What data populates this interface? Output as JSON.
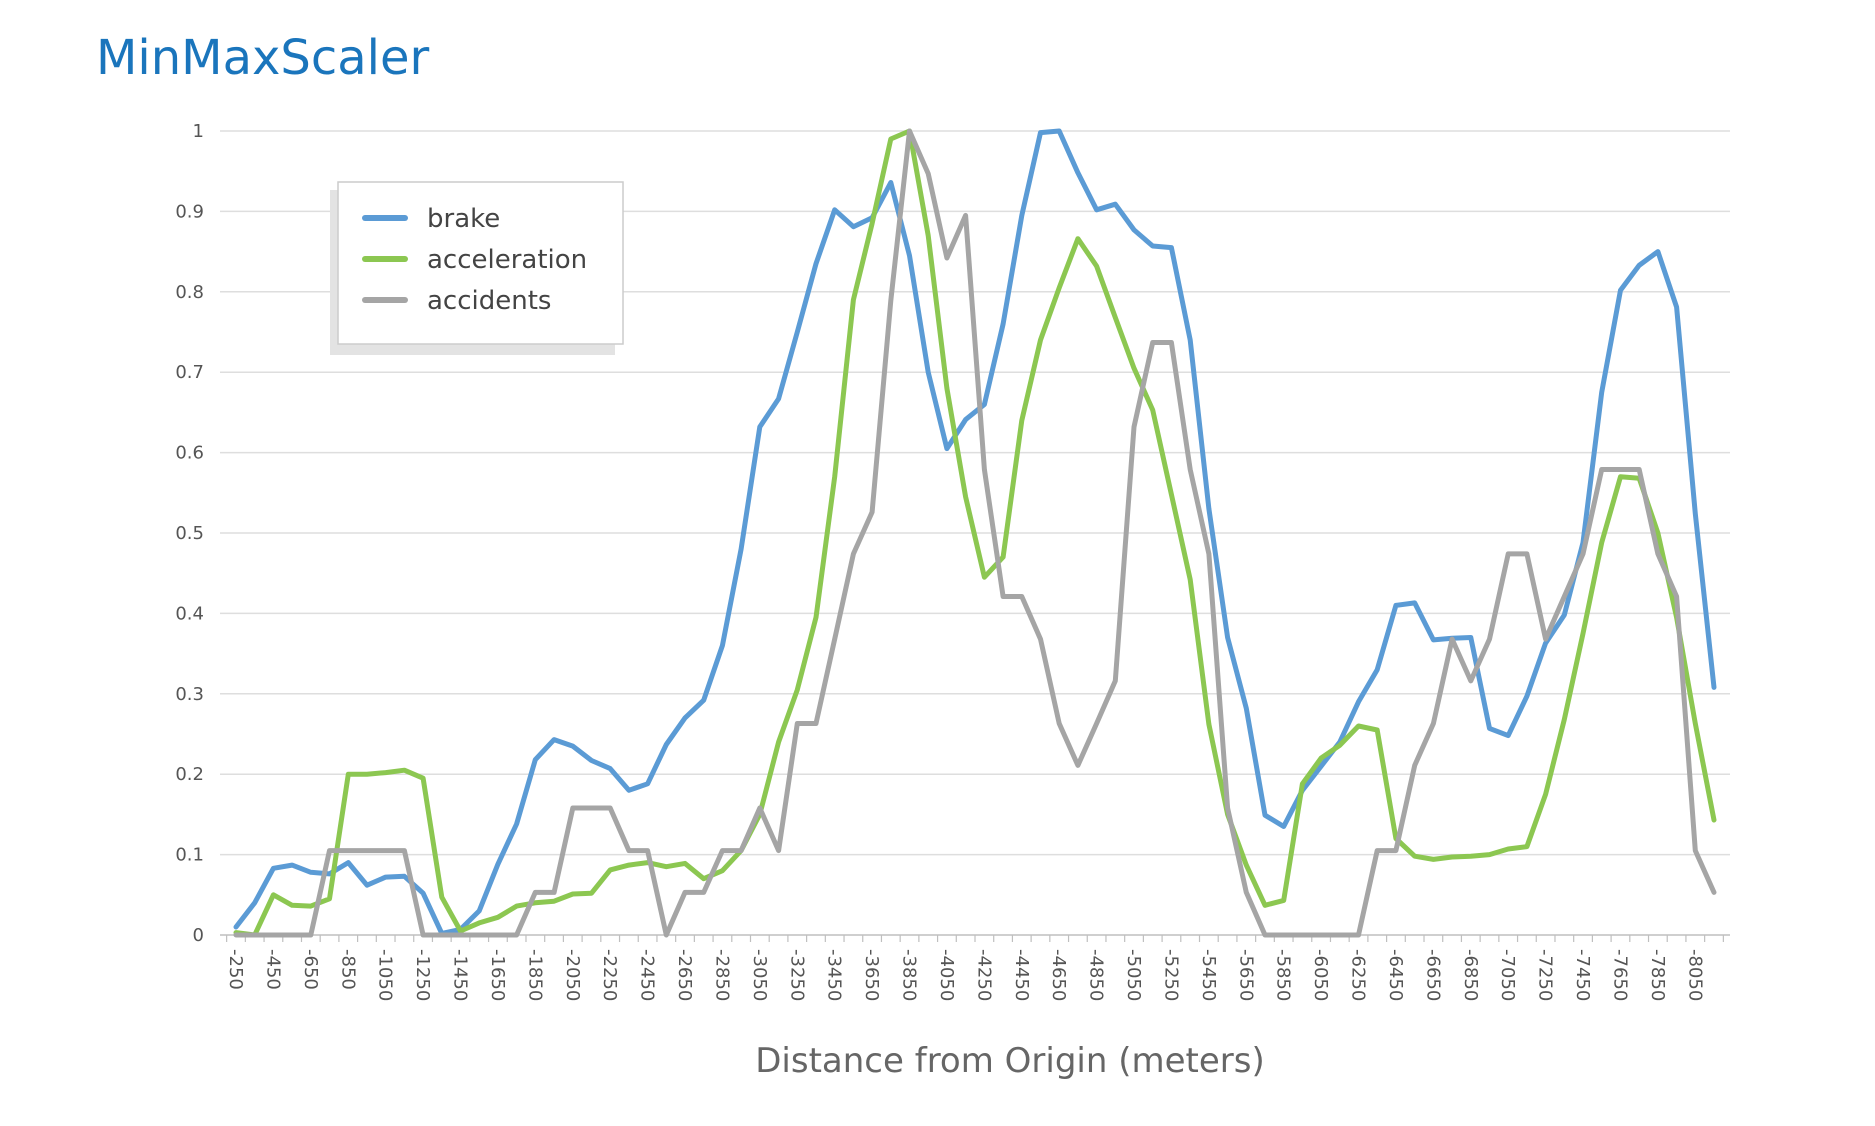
{
  "chart_data": {
    "type": "line",
    "title": "MinMaxScaler",
    "xlabel": "Distance from Origin (meters)",
    "ylabel": "",
    "ylim": [
      0,
      1
    ],
    "yticks": [
      0,
      0.1,
      0.2,
      0.3,
      0.4,
      0.5,
      0.6,
      0.7,
      0.8,
      0.9,
      1
    ],
    "ytick_labels": [
      "0",
      "0.1",
      "0.2",
      "0.3",
      "0.4",
      "0.5",
      "0.6",
      "0.7",
      "0.8",
      "0.9",
      "1"
    ],
    "x_tick_labels": [
      "-250",
      "-450",
      "-650",
      "-850",
      "-1050",
      "-1250",
      "-1450",
      "-1650",
      "-1850",
      "-2050",
      "-2250",
      "-2450",
      "-2650",
      "-2850",
      "-3050",
      "-3250",
      "-3450",
      "-3650",
      "-3850",
      "-4050",
      "-4250",
      "-4450",
      "-4650",
      "-4850",
      "-5050",
      "-5250",
      "-5450",
      "-5650",
      "-5850",
      "-6050",
      "-6250",
      "-6450",
      "-6650",
      "-6850",
      "-7050",
      "-7250",
      "-7450",
      "-7650",
      "-7850",
      "-8050"
    ],
    "x": [
      -250,
      -350,
      -450,
      -550,
      -650,
      -750,
      -850,
      -950,
      -1050,
      -1150,
      -1250,
      -1350,
      -1450,
      -1550,
      -1650,
      -1750,
      -1850,
      -1950,
      -2050,
      -2150,
      -2250,
      -2350,
      -2450,
      -2550,
      -2650,
      -2750,
      -2850,
      -2950,
      -3050,
      -3150,
      -3250,
      -3350,
      -3450,
      -3550,
      -3650,
      -3750,
      -3850,
      -3950,
      -4050,
      -4150,
      -4250,
      -4350,
      -4450,
      -4550,
      -4650,
      -4750,
      -4850,
      -4950,
      -5050,
      -5150,
      -5250,
      -5350,
      -5450,
      -5550,
      -5650,
      -5750,
      -5850,
      -5950,
      -6050,
      -6150,
      -6250,
      -6350,
      -6450,
      -6550,
      -6650,
      -6750,
      -6850,
      -6950,
      -7050,
      -7150,
      -7250,
      -7350,
      -7450,
      -7550,
      -7650,
      -7750,
      -7850,
      -7950,
      -8050,
      -8150
    ],
    "grid": true,
    "legend_position": "top-left",
    "series": [
      {
        "name": "brake",
        "color": "#5b9bd5",
        "values": [
          0.01,
          0.04,
          0.083,
          0.087,
          0.078,
          0.076,
          0.09,
          0.062,
          0.072,
          0.073,
          0.052,
          0.002,
          0.007,
          0.03,
          0.088,
          0.138,
          0.218,
          0.243,
          0.235,
          0.217,
          0.207,
          0.18,
          0.188,
          0.237,
          0.27,
          0.292,
          0.36,
          0.48,
          0.632,
          0.667,
          0.75,
          0.835,
          0.902,
          0.881,
          0.892,
          0.936,
          0.845,
          0.7,
          0.605,
          0.641,
          0.66,
          0.76,
          0.895,
          0.998,
          1.0,
          0.948,
          0.902,
          0.909,
          0.877,
          0.857,
          0.855,
          0.74,
          0.53,
          0.37,
          0.282,
          0.149,
          0.135,
          0.18,
          0.21,
          0.24,
          0.29,
          0.33,
          0.41,
          0.413,
          0.367,
          0.369,
          0.37,
          0.257,
          0.248,
          0.297,
          0.363,
          0.398,
          0.488,
          0.675,
          0.802,
          0.833,
          0.85,
          0.781,
          0.524,
          0.308
        ]
      },
      {
        "name": "acceleration",
        "color": "#8cc751",
        "values": [
          0.003,
          0.0,
          0.05,
          0.037,
          0.036,
          0.045,
          0.2,
          0.2,
          0.202,
          0.205,
          0.195,
          0.047,
          0.005,
          0.015,
          0.022,
          0.036,
          0.04,
          0.042,
          0.051,
          0.052,
          0.081,
          0.087,
          0.09,
          0.085,
          0.089,
          0.07,
          0.08,
          0.105,
          0.15,
          0.24,
          0.305,
          0.395,
          0.57,
          0.79,
          0.885,
          0.99,
          1.0,
          0.87,
          0.68,
          0.545,
          0.445,
          0.47,
          0.64,
          0.74,
          0.805,
          0.866,
          0.832,
          0.768,
          0.705,
          0.653,
          0.548,
          0.442,
          0.262,
          0.15,
          0.087,
          0.037,
          0.043,
          0.188,
          0.22,
          0.236,
          0.26,
          0.255,
          0.12,
          0.098,
          0.094,
          0.097,
          0.098,
          0.1,
          0.107,
          0.11,
          0.175,
          0.268,
          0.375,
          0.488,
          0.57,
          0.568,
          0.5,
          0.395,
          0.263,
          0.143
        ]
      },
      {
        "name": "accidents",
        "color": "#a5a5a5",
        "values": [
          0.0,
          0.0,
          0.0,
          0.0,
          0.0,
          0.105,
          0.105,
          0.105,
          0.105,
          0.105,
          0.0,
          0.0,
          0.0,
          0.0,
          0.0,
          0.0,
          0.053,
          0.053,
          0.158,
          0.158,
          0.158,
          0.105,
          0.105,
          0.0,
          0.053,
          0.053,
          0.105,
          0.105,
          0.158,
          0.105,
          0.263,
          0.263,
          0.368,
          0.474,
          0.526,
          0.789,
          1.0,
          0.947,
          0.842,
          0.895,
          0.579,
          0.421,
          0.421,
          0.368,
          0.263,
          0.211,
          0.263,
          0.316,
          0.632,
          0.737,
          0.737,
          0.579,
          0.474,
          0.158,
          0.053,
          0.0,
          0.0,
          0.0,
          0.0,
          0.0,
          0.0,
          0.105,
          0.105,
          0.211,
          0.263,
          0.368,
          0.316,
          0.368,
          0.474,
          0.474,
          0.368,
          0.421,
          0.474,
          0.579,
          0.579,
          0.579,
          0.474,
          0.421,
          0.105,
          0.053
        ]
      }
    ]
  }
}
